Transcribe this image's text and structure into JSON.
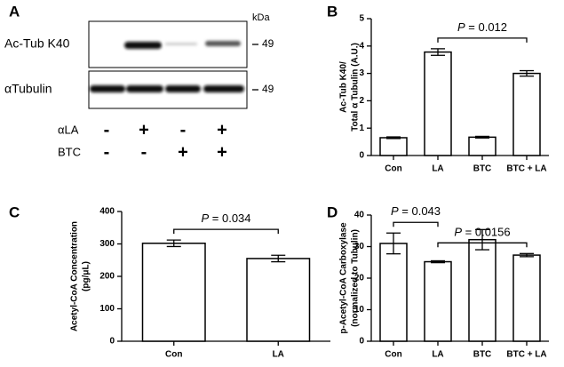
{
  "blot": {
    "label": "A",
    "unit": "kDa",
    "rows": [
      {
        "name": "Ac-Tub K40",
        "marker": "49"
      },
      {
        "name": "αTubulin",
        "marker": "49"
      }
    ],
    "treatments": [
      {
        "name": "αLA",
        "signs": [
          "-",
          "+",
          "-",
          "+"
        ]
      },
      {
        "name": "BTC",
        "signs": [
          "-",
          "-",
          "+",
          "+"
        ]
      }
    ]
  },
  "chart_data": [
    {
      "type": "bar",
      "label": "B",
      "ylabel": [
        "Ac-Tub K40/",
        "Total α Tubulin (A.U.)"
      ],
      "categories": [
        "Con",
        "LA",
        "BTC",
        "BTC + LA"
      ],
      "values": [
        0.65,
        3.78,
        0.67,
        3.0
      ],
      "errors": [
        0.03,
        0.12,
        0.03,
        0.1
      ],
      "color": "#ffffff",
      "ylim": [
        0,
        5
      ],
      "yticks": [
        0,
        1,
        2,
        3,
        4,
        5
      ],
      "comparisons": [
        {
          "label": "P = 0.012",
          "categories": [
            1,
            3
          ]
        }
      ]
    },
    {
      "type": "bar",
      "label": "C",
      "ylabel": [
        "Acetyl-CoA Concentration",
        "(pg/μL)"
      ],
      "categories": [
        "Con",
        "LA"
      ],
      "values": [
        302,
        255
      ],
      "errors": [
        10,
        10
      ],
      "color": "#ffffff",
      "ylim": [
        0,
        400
      ],
      "yticks": [
        0,
        100,
        200,
        300,
        400
      ],
      "comparisons": [
        {
          "label": "P = 0.034",
          "categories": [
            0,
            1
          ]
        }
      ]
    },
    {
      "type": "bar",
      "label": "D",
      "ylabel": [
        "p-Acetyl-CoA Carboxylase",
        "(normalized to Tubulin)"
      ],
      "categories": [
        "Con",
        "LA",
        "BTC",
        "BTC + LA"
      ],
      "values": [
        31,
        25.2,
        32.2,
        27.3
      ],
      "errors": [
        3.3,
        0.3,
        3.2,
        0.5
      ],
      "color": "#ffffff",
      "ylim": [
        0,
        40
      ],
      "yticks": [
        0,
        10,
        20,
        30,
        40
      ],
      "comparisons": [
        {
          "label": "P = 0.043",
          "categories": [
            0,
            1
          ]
        },
        {
          "label": "P = 0.0156",
          "categories": [
            1,
            3
          ]
        }
      ]
    }
  ]
}
